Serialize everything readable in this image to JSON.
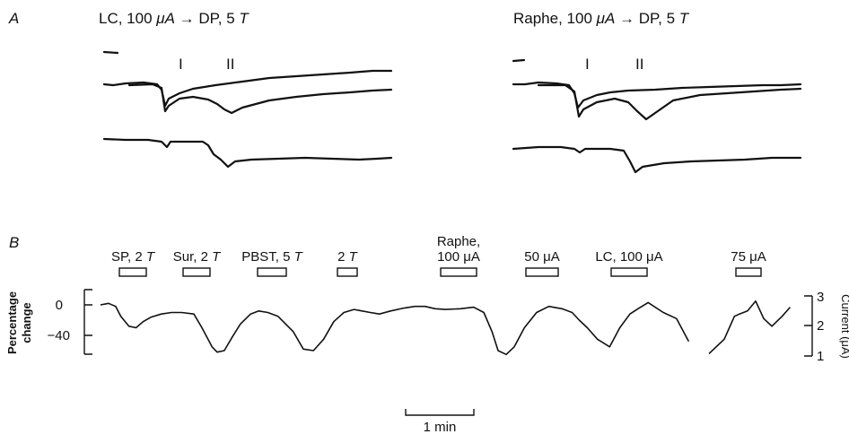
{
  "panel_a": {
    "letter": "A",
    "left_title_prefix": "LC, 100 ",
    "left_title_unit": "μA",
    "left_title_suffix": " → DP, 5 ",
    "left_title_T": "T",
    "right_title_prefix": "Raphe, 100 ",
    "right_title_unit": "μA",
    "right_title_suffix": " → DP, 5 ",
    "right_title_T": "T",
    "marker_1": "I",
    "marker_2": "II"
  },
  "panel_b": {
    "letter": "B",
    "ylabel_line1": "Percentage",
    "ylabel_line2": "change",
    "y_ticks": [
      "0",
      "−40"
    ],
    "right_axis_label": "Current (μA)",
    "right_ticks": [
      "3",
      "2",
      "1"
    ],
    "scale_bar_label": "1 min",
    "stimuli": [
      {
        "line1": "",
        "label": "SP, 2 ",
        "italic": "T"
      },
      {
        "line1": "",
        "label": "Sur, 2 ",
        "italic": "T"
      },
      {
        "line1": "",
        "label": "PBST, 5 ",
        "italic": "T"
      },
      {
        "line1": "",
        "label": "2 ",
        "italic": "T"
      },
      {
        "line1": "Raphe,",
        "label": "100 μA",
        "italic": ""
      },
      {
        "line1": "",
        "label": "50 μA",
        "italic": ""
      },
      {
        "line1": "",
        "label": "LC, 100 μA",
        "italic": ""
      },
      {
        "line1": "",
        "label": "75 μA",
        "italic": ""
      }
    ]
  },
  "chart_data": {
    "type": "line",
    "title": "",
    "xlabel": "",
    "ylabel": "Percentage change",
    "ylim": [
      -65,
      15
    ],
    "y_right_label": "Current (μA)",
    "y_right_ticks": [
      1,
      2,
      3
    ],
    "x_unit": "min",
    "series": [
      {
        "x": [
          0,
          0.08,
          0.15,
          0.2,
          0.28,
          0.35,
          0.42,
          0.5,
          0.6,
          0.7,
          0.8,
          0.92,
          1.0,
          1.1,
          1.15,
          1.22,
          1.3,
          1.38,
          1.48,
          1.56,
          1.65,
          1.75,
          1.9,
          2.0,
          2.1,
          2.2,
          2.3,
          2.4,
          2.5,
          2.58,
          2.66,
          2.75,
          2.86,
          3.0,
          3.1,
          3.2,
          3.3,
          3.4,
          3.55,
          3.68,
          3.78,
          3.86,
          3.92,
          4.0,
          4.08,
          4.18,
          4.3,
          4.42,
          4.55,
          4.65,
          4.72,
          4.8,
          4.9,
          5.02,
          5.12,
          5.22,
          5.3,
          5.4,
          5.55,
          5.68,
          5.8,
          6.0,
          6.15,
          6.25,
          6.3,
          6.38,
          6.46,
          6.54,
          6.62,
          6.72,
          6.8
        ],
        "values": [
          0,
          2,
          -2,
          -15,
          -28,
          -30,
          -22,
          -16,
          -12,
          -10,
          -10,
          -12,
          -30,
          -55,
          -62,
          -60,
          -42,
          -25,
          -12,
          -8,
          -10,
          -15,
          -35,
          -58,
          -60,
          -45,
          -22,
          -10,
          -6,
          -8,
          -10,
          -12,
          -8,
          -4,
          -2,
          -2,
          -5,
          -6,
          -5,
          -3,
          -10,
          -35,
          -60,
          -65,
          -55,
          -30,
          -10,
          -2,
          -5,
          -10,
          -20,
          -30,
          -45,
          -55,
          -30,
          -12,
          -5,
          3,
          -10,
          -18,
          -48,
          -64,
          -45,
          -15,
          -12,
          -8,
          5,
          -18,
          -28,
          -15,
          -3
        ]
      }
    ],
    "stimulus_bars": [
      "SP, 2 T",
      "Sur, 2 T",
      "PBST, 5 T",
      "2 T",
      "Raphe, 100 μA",
      "50 μA",
      "LC, 100 μA",
      "75 μA"
    ]
  }
}
